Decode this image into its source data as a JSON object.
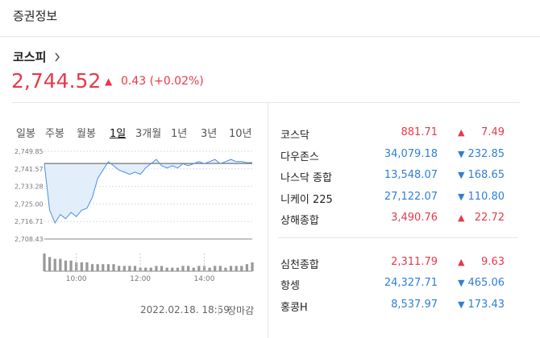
{
  "header": {
    "title": "증권정보"
  },
  "index": {
    "name": "코스피",
    "price": "2,744.52",
    "arrow": "▲",
    "change": "0.43 (+0.02%)"
  },
  "tabs": {
    "items": [
      "일봉",
      "주봉",
      "월봉",
      "1일",
      "3개월",
      "1년",
      "3년",
      "10년"
    ],
    "selected": 3
  },
  "chart": {
    "type": "line",
    "color": "#4a8fe0",
    "fill": "#e3eefb",
    "x": [
      "09:00",
      "09:10",
      "09:20",
      "09:30",
      "09:40",
      "09:50",
      "10:00",
      "10:10",
      "10:20",
      "10:30",
      "10:40",
      "10:50",
      "11:00",
      "11:10",
      "11:20",
      "11:30",
      "11:40",
      "11:50",
      "12:00",
      "12:10",
      "12:20",
      "12:30",
      "12:40",
      "12:50",
      "13:00",
      "13:10",
      "13:20",
      "13:30",
      "13:40",
      "13:50",
      "14:00",
      "14:10",
      "14:20",
      "14:30",
      "14:40",
      "14:50",
      "15:00",
      "15:10",
      "15:20",
      "15:30"
    ],
    "values": [
      2744,
      2722,
      2716,
      2720,
      2718,
      2721,
      2719,
      2722,
      2723,
      2728,
      2737,
      2741,
      2745,
      2743,
      2741,
      2740,
      2739,
      2740,
      2739,
      2742,
      2744,
      2746,
      2743,
      2742,
      2743,
      2742,
      2744,
      2743,
      2744,
      2745,
      2744,
      2745,
      2746,
      2744,
      2745,
      2746,
      2745,
      2745,
      2744.5,
      2744.52
    ],
    "reference": 2744.09,
    "volume": [
      10,
      8,
      7,
      7,
      6,
      6,
      5,
      5,
      5,
      4,
      4,
      4,
      4,
      4,
      3,
      3,
      3,
      3,
      2,
      2,
      2,
      3,
      3,
      2,
      2,
      2,
      3,
      3,
      2,
      3,
      3,
      2,
      3,
      3,
      2,
      3,
      3,
      3,
      4,
      5
    ],
    "xlim": [
      "09:00",
      "15:30"
    ],
    "xticks": [
      "10:00",
      "12:00",
      "14:00"
    ],
    "ylim": [
      2708.43,
      2749.85
    ],
    "yticks": [
      {
        "value": 2749.85,
        "label": "2,749.85"
      },
      {
        "value": 2741.57,
        "label": "2,741.57"
      },
      {
        "value": 2733.28,
        "label": "2,733.28"
      },
      {
        "value": 2725,
        "label": "2,725.00"
      },
      {
        "value": 2716.71,
        "label": "2,716.71"
      },
      {
        "value": 2708.43,
        "label": "2,708.43"
      }
    ]
  },
  "footer": {
    "time": "2022.02.18. 18:59",
    "status": "장마감"
  },
  "table": {
    "groups": [
      [
        {
          "name": "코스닥",
          "price": "881.71",
          "arrow": "▲",
          "change": "7.49",
          "up": true
        },
        {
          "name": "다우존스",
          "price": "34,079.18",
          "arrow": "▼",
          "change": "232.85",
          "up": false
        },
        {
          "name": "나스닥 종합",
          "price": "13,548.07",
          "arrow": "▼",
          "change": "168.65",
          "up": false
        },
        {
          "name": "니케이 225",
          "price": "27,122.07",
          "arrow": "▼",
          "change": "110.80",
          "up": false
        },
        {
          "name": "상해종합",
          "price": "3,490.76",
          "arrow": "▲",
          "change": "22.72",
          "up": true
        }
      ],
      [
        {
          "name": "심천종합",
          "price": "2,311.79",
          "arrow": "▲",
          "change": "9.63",
          "up": true
        },
        {
          "name": "항셍",
          "price": "24,327.71",
          "arrow": "▼",
          "change": "465.06",
          "up": false
        },
        {
          "name": "홍콩H",
          "price": "8,537.97",
          "arrow": "▼",
          "change": "173.43",
          "up": false
        }
      ]
    ]
  }
}
